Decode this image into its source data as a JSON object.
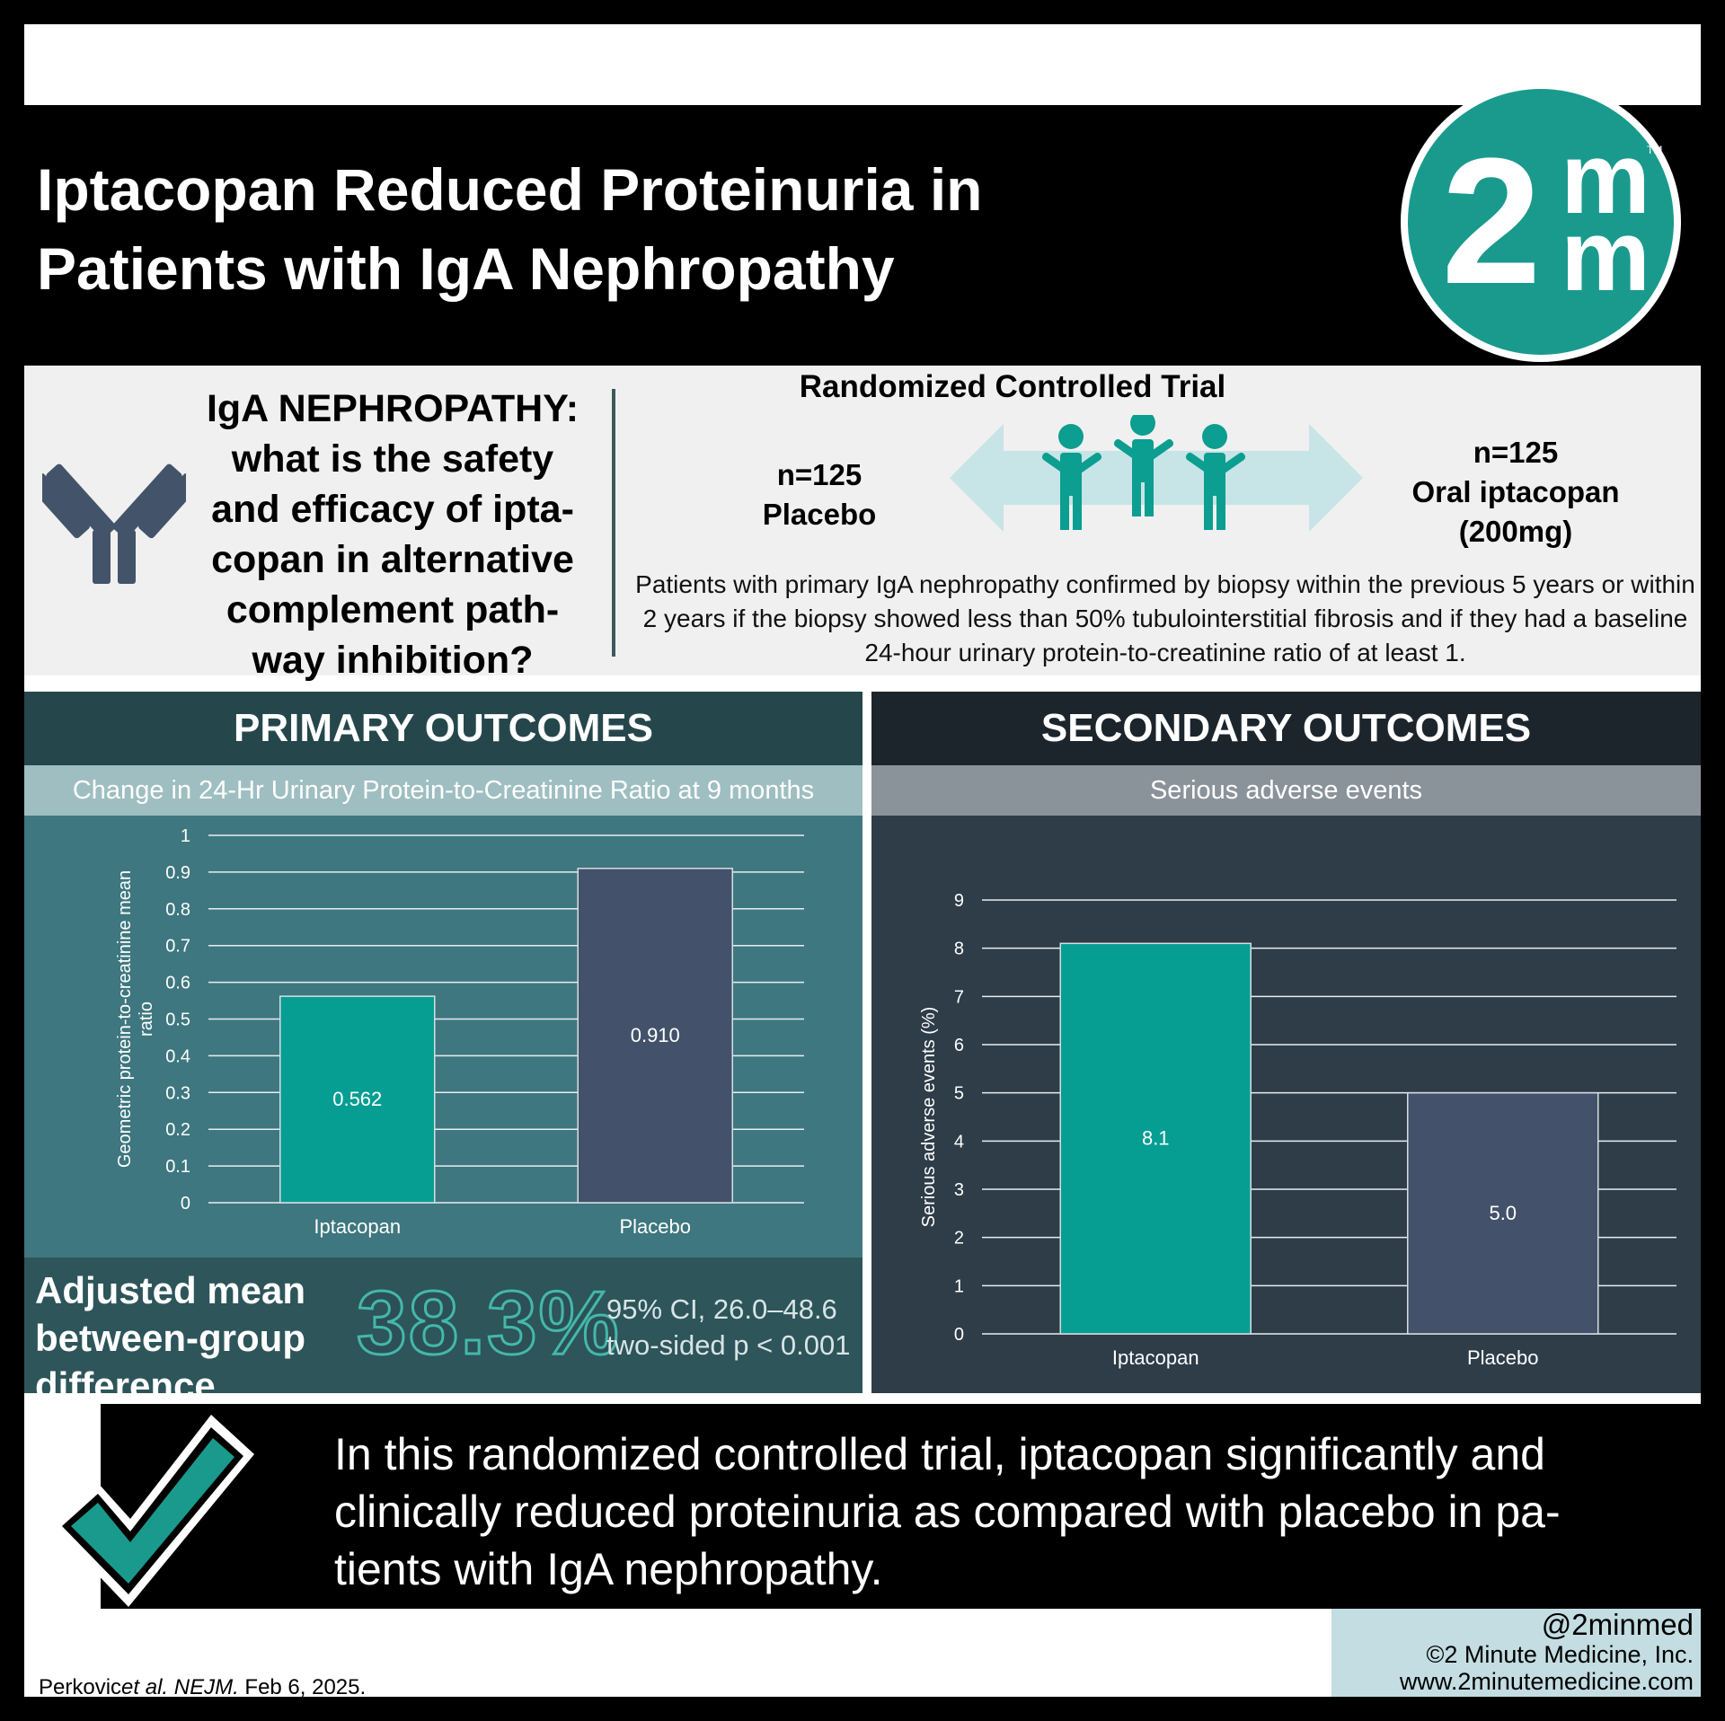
{
  "header": {
    "title_line1": "Iptacopan Reduced Proteinuria in",
    "title_line2": "Patients with IgA Nephropathy",
    "logo_top": "m",
    "logo_left": "2",
    "logo_bottom": "m",
    "logo_tm": "TM"
  },
  "intro": {
    "question_lines": [
      "IgA NEPHROPATHY:",
      "what is the safety",
      "and efficacy of ipta-",
      "copan in alternative",
      "complement path-",
      "way inhibition?"
    ],
    "rct_title": "Randomized Controlled Trial",
    "placebo_n": "n=125",
    "placebo_label": "Placebo",
    "drug_n": "n=125",
    "drug_label": "Oral iptacopan",
    "drug_dose": "(200mg)",
    "criteria": "Patients with primary IgA nephropathy confirmed by biopsy within the previous 5 years or within 2 years if the biopsy showed less than 50% tubulointerstitial fibrosis and if they had a baseline 24-hour urinary protein-to-creatinine ratio of at least 1."
  },
  "primary": {
    "heading": "PRIMARY OUTCOMES",
    "subheading": "Change in 24-Hr Urinary Protein-to-Creatinine Ratio at 9 months",
    "adjusted_label_lines": [
      "Adjusted mean",
      "between-group",
      "difference"
    ],
    "adjusted_value": "38.3%",
    "ci": "95% CI, 26.0–48.6",
    "p_value": "two-sided p < 0.001"
  },
  "secondary": {
    "heading": "SECONDARY OUTCOMES",
    "subheading": "Serious adverse events"
  },
  "conclusion": {
    "lines": [
      "In this randomized controlled trial, iptacopan significantly and",
      "clinically reduced proteinuria as compared with placebo in pa-",
      "tients with IgA nephropathy."
    ]
  },
  "footer": {
    "citation_author": "Perkovic",
    "citation_etal": "et al. NEJM.",
    "citation_date": " Feb 6, 2025.",
    "handle": "@2minmed",
    "company": "©2 Minute Medicine, Inc.",
    "website": "www.2minutemedicine.com"
  },
  "colors": {
    "teal": "#069e92",
    "slate": "#43526a",
    "primary_panel": "#3e777f",
    "secondary_panel": "#2e3d48"
  },
  "chart_data": [
    {
      "type": "bar",
      "categories": [
        "Iptacopan",
        "Placebo"
      ],
      "values": [
        0.562,
        0.91
      ],
      "data_labels": [
        "0.562",
        "0.910"
      ],
      "ylabel": "Geometric protein-to-creatinine mean ratio",
      "ylim": [
        0,
        1
      ],
      "yticks": [
        "0",
        "0.1",
        "0.2",
        "0.3",
        "0.4",
        "0.5",
        "0.6",
        "0.7",
        "0.8",
        "0.9",
        "1"
      ],
      "grid": true,
      "bar_colors": [
        "#069e92",
        "#43526a"
      ]
    },
    {
      "type": "bar",
      "categories": [
        "Iptacopan",
        "Placebo"
      ],
      "values": [
        8.1,
        5.0
      ],
      "data_labels": [
        "8.1",
        "5.0"
      ],
      "ylabel": "Serious adverse events (%)",
      "ylim": [
        0,
        9
      ],
      "yticks": [
        "0",
        "1",
        "2",
        "3",
        "4",
        "5",
        "6",
        "7",
        "8",
        "9"
      ],
      "grid": true,
      "bar_colors": [
        "#069e92",
        "#43526a"
      ]
    }
  ]
}
